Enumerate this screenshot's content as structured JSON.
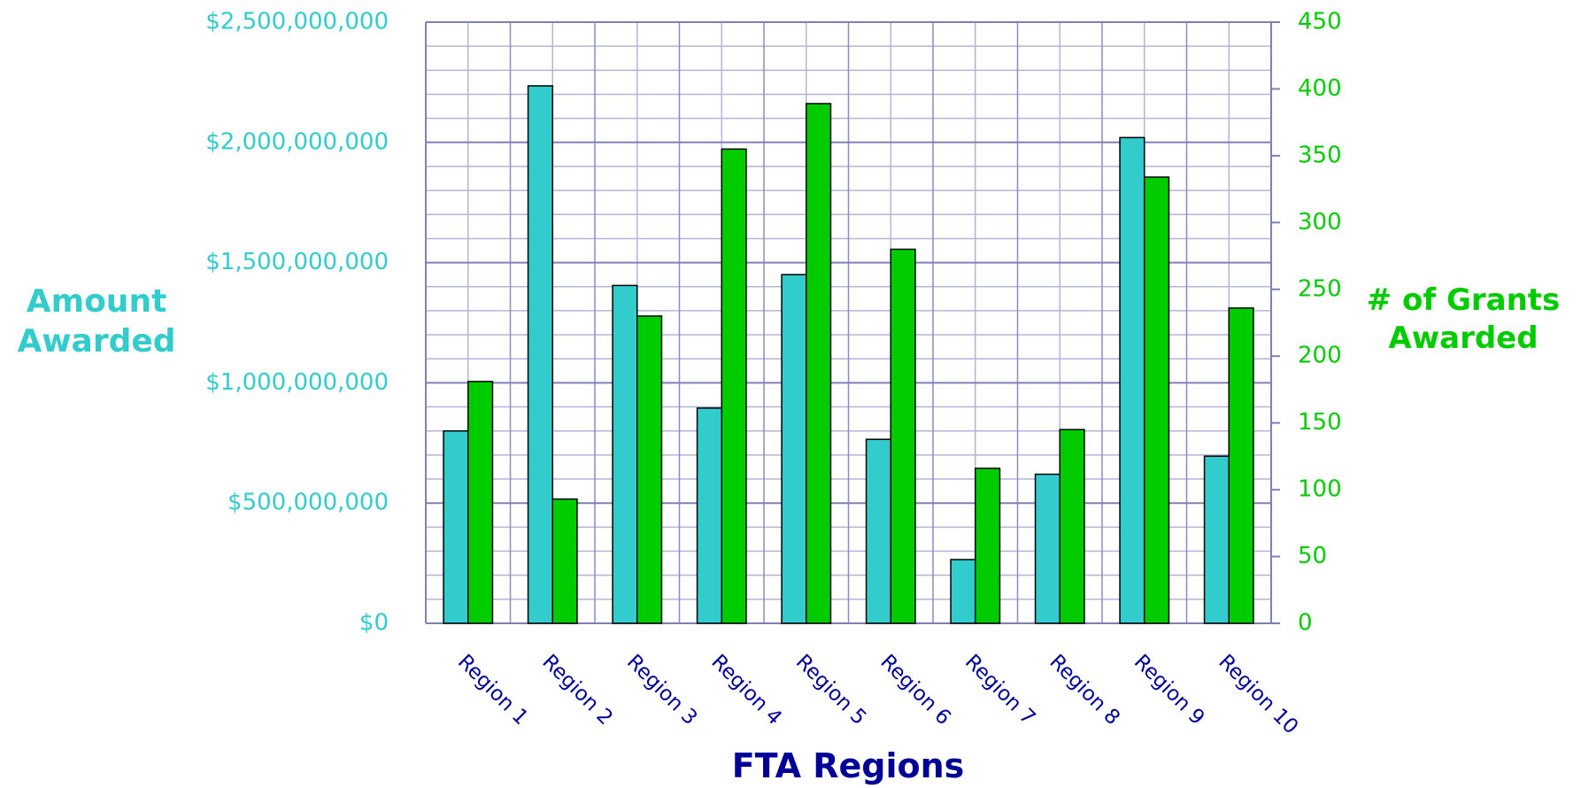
{
  "chart_data": {
    "type": "bar",
    "x_label": "FTA Regions",
    "y_label": "Amount Awarded",
    "y2_label": "# of Grants Awarded",
    "categories": [
      "Region 1",
      "Region 2",
      "Region 3",
      "Region 4",
      "Region 5",
      "Region 6",
      "Region 7",
      "Region 8",
      "Region 9",
      "Region 10"
    ],
    "series": [
      {
        "name": "Amount Awarded",
        "color": "#33cccc",
        "axis": "y",
        "values": [
          800000000,
          2235000000,
          1405000000,
          895000000,
          1450000000,
          765000000,
          265000000,
          620000000,
          2020000000,
          695000000
        ]
      },
      {
        "name": "# of Grants Awarded",
        "color": "#00cc00",
        "axis": "y2",
        "values": [
          181,
          93,
          230,
          355,
          389,
          280,
          116,
          145,
          334,
          236
        ]
      }
    ],
    "ylim": [
      0,
      2500000000
    ],
    "yticks": [
      {
        "value": 0,
        "label": "$0"
      },
      {
        "value": 500000000,
        "label": "$500,000,000"
      },
      {
        "value": 1000000000,
        "label": "$1,000,000,000"
      },
      {
        "value": 1500000000,
        "label": "$1,500,000,000"
      },
      {
        "value": 2000000000,
        "label": "$2,000,000,000"
      },
      {
        "value": 2500000000,
        "label": "$2,500,000,000"
      }
    ],
    "y2lim": [
      0,
      450
    ],
    "y2ticks": [
      0,
      50,
      100,
      150,
      200,
      250,
      300,
      350,
      400,
      450
    ],
    "grid": true,
    "category_label_color": "#000099"
  }
}
